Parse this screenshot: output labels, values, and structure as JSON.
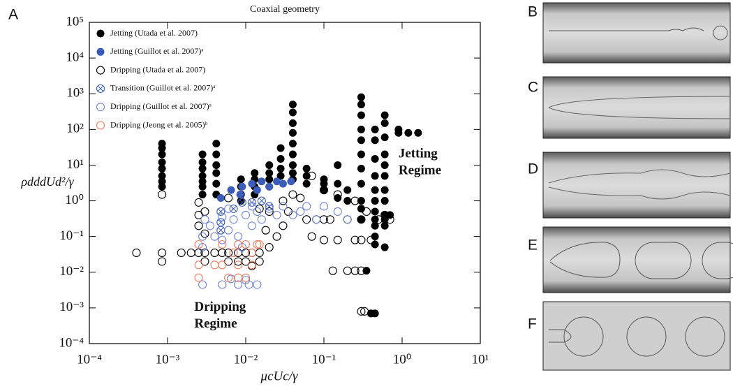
{
  "chart_data": {
    "type": "scatter",
    "title": "Coaxial geometry",
    "panel_label": "A",
    "x_label": "μcUc/γ",
    "y_label": "ρdddUd²/γ",
    "log_x": true,
    "log_y": true,
    "legend": "upper-left",
    "xlim": [
      0.0001,
      10
    ],
    "ylim": [
      0.0001,
      100000
    ],
    "xticks": [
      {
        "value": 0.0001,
        "label": "10⁻⁴"
      },
      {
        "value": 0.001,
        "label": "10⁻³"
      },
      {
        "value": 0.01,
        "label": "10⁻²"
      },
      {
        "value": 0.1,
        "label": "10⁻¹"
      },
      {
        "value": 1,
        "label": "10⁰"
      },
      {
        "value": 10,
        "label": "10¹"
      }
    ],
    "yticks": [
      {
        "value": 0.0001,
        "label": "10⁻⁴"
      },
      {
        "value": 0.001,
        "label": "10⁻³"
      },
      {
        "value": 0.01,
        "label": "10⁻²"
      },
      {
        "value": 0.1,
        "label": "10⁻¹"
      },
      {
        "value": 1,
        "label": "10⁰"
      },
      {
        "value": 10,
        "label": "10¹"
      },
      {
        "value": 100,
        "label": "10²"
      },
      {
        "value": 1000,
        "label": "10³"
      },
      {
        "value": 10000,
        "label": "10⁴"
      },
      {
        "value": 100000,
        "label": "10⁵"
      }
    ],
    "annotations": [
      {
        "lines": [
          "Jetting",
          "Regime"
        ],
        "x": 0.9,
        "y": 20
      },
      {
        "lines": [
          "Dripping",
          "Regime"
        ],
        "x": 0.0022,
        "y": 0.001
      }
    ],
    "series": [
      {
        "name": "Jetting (Utada et al. 2007)",
        "color": "#000000",
        "marker": "filled",
        "x": [
          0.00085,
          0.00085,
          0.00085,
          0.00085,
          0.00085,
          0.00085,
          0.00085,
          0.00085,
          0.0028,
          0.0028,
          0.0028,
          0.0028,
          0.0028,
          0.0028,
          0.0028,
          0.0042,
          0.0042,
          0.0042,
          0.0042,
          0.0042,
          0.0042,
          0.0087,
          0.0087,
          0.0087,
          0.0087,
          0.013,
          0.013,
          0.013,
          0.013,
          0.02,
          0.02,
          0.02,
          0.02,
          0.028,
          0.028,
          0.028,
          0.028,
          0.04,
          0.04,
          0.04,
          0.04,
          0.04,
          0.04,
          0.04,
          0.04,
          0.04,
          0.06,
          0.06,
          0.06,
          0.1,
          0.1,
          0.1,
          0.15,
          0.15,
          0.15,
          0.2,
          0.2,
          0.3,
          0.3,
          0.3,
          0.3,
          0.3,
          0.3,
          0.3,
          0.3,
          0.3,
          0.3,
          0.3,
          0.45,
          0.45,
          0.45,
          0.45,
          0.45,
          0.45,
          0.45,
          0.45,
          0.45,
          0.45,
          0.45,
          0.6,
          0.6,
          0.6,
          0.6,
          0.6,
          0.6,
          0.6,
          0.6,
          0.6,
          0.6,
          0.6,
          0.6,
          0.7,
          0.35,
          0.4,
          0.45,
          0.9,
          0.9,
          1.2,
          1.6
        ],
        "y": [
          40,
          30,
          20,
          12,
          8,
          5,
          3.5,
          2.5,
          20,
          12,
          8,
          5,
          3.5,
          2.5,
          1.5,
          40,
          20,
          10,
          6,
          3,
          1.5,
          4,
          2.5,
          1.5,
          1,
          6,
          4,
          2.5,
          1.5,
          10,
          6,
          4,
          2.5,
          30,
          15,
          8,
          5,
          500,
          300,
          150,
          80,
          40,
          20,
          10,
          6,
          4,
          8,
          5,
          3,
          4,
          3,
          2,
          10,
          3,
          1.2,
          2,
          1,
          800,
          500,
          250,
          100,
          50,
          20,
          8,
          3,
          1,
          0.6,
          0.3,
          100,
          50,
          15,
          5,
          2,
          1,
          0.5,
          0.3,
          0.2,
          0.1,
          0.06,
          250,
          150,
          60,
          20,
          10,
          5,
          2,
          1,
          0.4,
          0.3,
          0.2,
          0.05,
          0.4,
          0.011,
          0.0007,
          0.0007,
          100,
          80,
          80,
          80
        ]
      },
      {
        "name": "Jetting (Guillot et al. 2007)ᵃ",
        "color": "#3b5cb8",
        "marker": "filled",
        "x": [
          0.0048,
          0.0065,
          0.009,
          0.012,
          0.016,
          0.02,
          0.025,
          0.03,
          0.038,
          0.0085,
          0.014
        ],
        "y": [
          1.2,
          2,
          2.5,
          3,
          3.5,
          2.5,
          3.5,
          3,
          3.5,
          1.5,
          2
        ]
      },
      {
        "name": "Dripping (Utada et al. 2007)",
        "color": "#000000",
        "marker": "open",
        "x": [
          0.00085,
          0.0025,
          0.0025,
          0.0025,
          0.003,
          0.003,
          0.0004,
          0.00085,
          0.00085,
          0.0015,
          0.002,
          0.0025,
          0.003,
          0.003,
          0.004,
          0.005,
          0.006,
          0.008,
          0.01,
          0.012,
          0.015,
          0.006,
          0.008,
          0.01,
          0.012,
          0.015,
          0.02,
          0.025,
          0.03,
          0.035,
          0.04,
          0.05,
          0.06,
          0.07,
          0.08,
          0.1,
          0.1,
          0.12,
          0.15,
          0.2,
          0.25,
          0.3,
          0.3,
          0.4,
          0.5,
          0.6,
          0.7,
          0.13,
          0.2,
          0.25,
          0.3,
          0.3,
          0.33,
          0.07,
          0.1,
          0.15,
          0.25,
          0.35,
          0.03,
          0.02,
          0.015,
          0.006,
          0.018
        ],
        "y": [
          1.5,
          0.9,
          0.4,
          0.2,
          0.5,
          0.12,
          0.035,
          0.035,
          0.02,
          0.035,
          0.035,
          0.035,
          0.035,
          0.02,
          0.035,
          0.035,
          0.035,
          0.035,
          0.035,
          0.035,
          0.035,
          0.02,
          0.02,
          0.02,
          0.015,
          0.02,
          0.05,
          0.1,
          0.2,
          0.5,
          1.5,
          1.2,
          0.3,
          0.1,
          0.3,
          0.08,
          0.3,
          0.3,
          0.08,
          0.3,
          0.08,
          0.3,
          0.08,
          0.08,
          0.3,
          0.4,
          0.3,
          0.011,
          0.011,
          0.011,
          0.011,
          0.0008,
          0.0008,
          5,
          2,
          1.5,
          1,
          0.5,
          1,
          0.5,
          0.6,
          1.2,
          0.15
        ]
      },
      {
        "name": "Transition (Guillot et al. 2007)ᵃ",
        "color": "#3b5cb8",
        "marker": "crossed",
        "x": [
          0.0048,
          0.0048,
          0.0048,
          0.007,
          0.009,
          0.012,
          0.016,
          0.02
        ],
        "y": [
          0.5,
          0.25,
          0.15,
          0.6,
          0.9,
          0.9,
          1,
          0.7
        ]
      },
      {
        "name": "Dripping (Guillot et al. 2007)ᵃ",
        "color": "#6f84d8",
        "marker": "open",
        "x": [
          0.0028,
          0.0028,
          0.003,
          0.0035,
          0.004,
          0.005,
          0.005,
          0.006,
          0.007,
          0.008,
          0.009,
          0.01,
          0.012,
          0.014,
          0.016,
          0.02,
          0.025,
          0.03,
          0.04,
          0.05,
          0.06,
          0.08,
          0.1,
          0.15,
          0.2,
          0.0028,
          0.005,
          0.008,
          0.011,
          0.014,
          0.0065,
          0.01,
          0.006,
          0.012
        ],
        "y": [
          0.1,
          0.05,
          0.3,
          0.2,
          0.1,
          0.35,
          0.08,
          0.15,
          0.3,
          0.1,
          0.05,
          0.4,
          0.2,
          0.5,
          0.3,
          0.6,
          0.4,
          0.7,
          0.4,
          0.5,
          0.7,
          0.3,
          0.7,
          0.5,
          0.3,
          0.0045,
          0.0045,
          0.0045,
          0.0045,
          0.0045,
          0.0065,
          0.006,
          0.6,
          0.7
        ]
      },
      {
        "name": "Dripping (Jeong et al. 2005)ᵇ",
        "color": "#ee7a5c",
        "marker": "open",
        "x": [
          0.0025,
          0.0025,
          0.0025,
          0.004,
          0.005,
          0.005,
          0.007,
          0.008,
          0.008,
          0.01,
          0.012,
          0.012,
          0.014,
          0.006,
          0.008,
          0.01,
          0.015
        ],
        "y": [
          0.06,
          0.016,
          0.007,
          0.016,
          0.06,
          0.016,
          0.035,
          0.06,
          0.016,
          0.06,
          0.016,
          0.035,
          0.06,
          0.007,
          0.007,
          0.007,
          0.06
        ]
      }
    ]
  },
  "panels": {
    "labels": [
      "B",
      "C",
      "D",
      "E",
      "F"
    ]
  }
}
